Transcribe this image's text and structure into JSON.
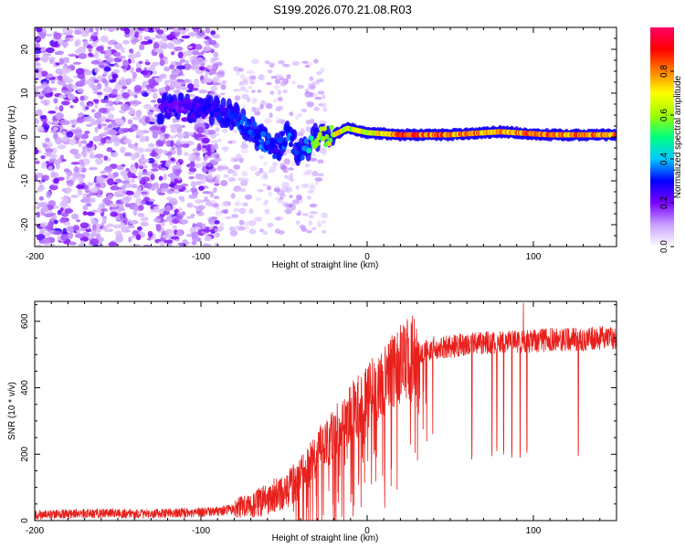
{
  "figure": {
    "title": "S199.2026.070.21.08.R03"
  },
  "chart_data": [
    {
      "id": "spectrogram",
      "type": "heatmap",
      "xlabel": "Height of straight line (km)",
      "ylabel": "Frequency (Hz)",
      "xlim": [
        -200,
        150
      ],
      "ylim": [
        -25,
        25
      ],
      "x_ticks": [
        -200,
        -100,
        0,
        100
      ],
      "y_ticks": [
        -20,
        -10,
        0,
        10,
        20
      ],
      "colorbar": {
        "label": "Normalized spectral amplitude",
        "range": [
          0.0,
          1.0
        ],
        "ticks": [
          0.0,
          0.2,
          0.4,
          0.6,
          0.8
        ],
        "tick_labels": [
          "0.0",
          "0.2",
          "0.4",
          "0.6",
          "0.8"
        ],
        "colormap": [
          "#ffffff",
          "#c9a0ff",
          "#7a00ff",
          "#0000ff",
          "#00c8ff",
          "#00ff80",
          "#a0ff00",
          "#ffff00",
          "#ff8000",
          "#ff0000",
          "#ff0066"
        ]
      },
      "signal_track": [
        {
          "x": -125,
          "y": 6.5,
          "amp": 0.25
        },
        {
          "x": -110,
          "y": 6.5,
          "amp": 0.22
        },
        {
          "x": -95,
          "y": 6.0,
          "amp": 0.28
        },
        {
          "x": -85,
          "y": 5.5,
          "amp": 0.3
        },
        {
          "x": -75,
          "y": 3.5,
          "amp": 0.35
        },
        {
          "x": -65,
          "y": 0.0,
          "amp": 0.35
        },
        {
          "x": -55,
          "y": -3.0,
          "amp": 0.3
        },
        {
          "x": -48,
          "y": 0.5,
          "amp": 0.35
        },
        {
          "x": -40,
          "y": -4.0,
          "amp": 0.3
        },
        {
          "x": -30,
          "y": 0.0,
          "amp": 0.6
        },
        {
          "x": -20,
          "y": 0.5,
          "amp": 0.7
        },
        {
          "x": -12,
          "y": 2.0,
          "amp": 0.7
        },
        {
          "x": 0,
          "y": 1.0,
          "amp": 0.65
        },
        {
          "x": 20,
          "y": 0.5,
          "amp": 0.9
        },
        {
          "x": 50,
          "y": 0.5,
          "amp": 0.85
        },
        {
          "x": 80,
          "y": 1.2,
          "amp": 0.8
        },
        {
          "x": 110,
          "y": 0.5,
          "amp": 0.85
        },
        {
          "x": 150,
          "y": 0.5,
          "amp": 0.8
        }
      ]
    },
    {
      "id": "snr",
      "type": "line",
      "xlabel": "Height of straight line (km)",
      "ylabel": "SNR (10 * v/v)",
      "xlim": [
        -200,
        150
      ],
      "ylim": [
        0,
        660
      ],
      "x_ticks": [
        -200,
        -100,
        0,
        100
      ],
      "y_ticks": [
        0,
        200,
        400,
        600
      ],
      "color": "#e8201c",
      "series": [
        {
          "name": "SNR",
          "x": [
            -200,
            -180,
            -160,
            -140,
            -120,
            -100,
            -90,
            -80,
            -70,
            -60,
            -50,
            -40,
            -30,
            -20,
            -10,
            0,
            10,
            20,
            30,
            40,
            50,
            60,
            70,
            80,
            90,
            100,
            110,
            120,
            130,
            140,
            150
          ],
          "y": [
            18,
            20,
            22,
            20,
            22,
            25,
            28,
            35,
            45,
            65,
            90,
            130,
            200,
            260,
            320,
            370,
            420,
            470,
            505,
            520,
            525,
            530,
            535,
            535,
            540,
            540,
            545,
            545,
            545,
            550,
            550
          ]
        }
      ],
      "dropouts": [
        {
          "x": 63,
          "y": 185
        },
        {
          "x": 75,
          "y": 195
        },
        {
          "x": 78,
          "y": 210
        },
        {
          "x": 82,
          "y": 200
        },
        {
          "x": 87,
          "y": 190
        },
        {
          "x": 92,
          "y": 190
        },
        {
          "x": 96,
          "y": 205
        },
        {
          "x": 127,
          "y": 195
        }
      ],
      "peak": {
        "x": 94,
        "y": 655
      }
    }
  ]
}
